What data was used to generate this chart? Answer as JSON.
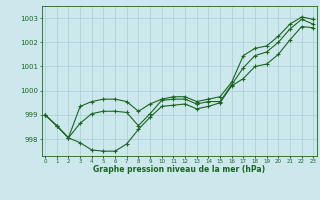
{
  "title": "Graphe pression niveau de la mer (hPa)",
  "background_color": "#cde8ec",
  "grid_color": "#aacdd4",
  "line_color": "#1a6620",
  "x_ticks": [
    0,
    1,
    2,
    3,
    4,
    5,
    6,
    7,
    8,
    9,
    10,
    11,
    12,
    13,
    14,
    15,
    16,
    17,
    18,
    19,
    20,
    21,
    22,
    23
  ],
  "y_ticks": [
    998,
    999,
    1000,
    1001,
    1002,
    1003
  ],
  "ylim": [
    997.3,
    1003.5
  ],
  "xlim": [
    -0.3,
    23.3
  ],
  "line1": [
    999.0,
    998.55,
    998.05,
    997.85,
    997.55,
    997.5,
    997.5,
    997.8,
    998.4,
    998.9,
    999.35,
    999.4,
    999.45,
    999.25,
    999.35,
    999.5,
    1000.2,
    1000.5,
    1001.0,
    1001.1,
    1001.5,
    1002.1,
    1002.65,
    1002.6
  ],
  "line2": [
    999.0,
    998.55,
    998.05,
    998.65,
    999.05,
    999.15,
    999.15,
    999.1,
    998.55,
    999.05,
    999.6,
    999.65,
    999.65,
    999.45,
    999.55,
    999.55,
    1000.25,
    1000.95,
    1001.45,
    1001.6,
    1002.0,
    1002.55,
    1002.95,
    1002.75
  ],
  "line3": [
    999.0,
    998.55,
    998.05,
    999.35,
    999.55,
    999.65,
    999.65,
    999.55,
    999.15,
    999.45,
    999.65,
    999.75,
    999.75,
    999.55,
    999.65,
    999.75,
    1000.35,
    1001.45,
    1001.75,
    1001.85,
    1002.25,
    1002.75,
    1003.05,
    1002.95
  ]
}
